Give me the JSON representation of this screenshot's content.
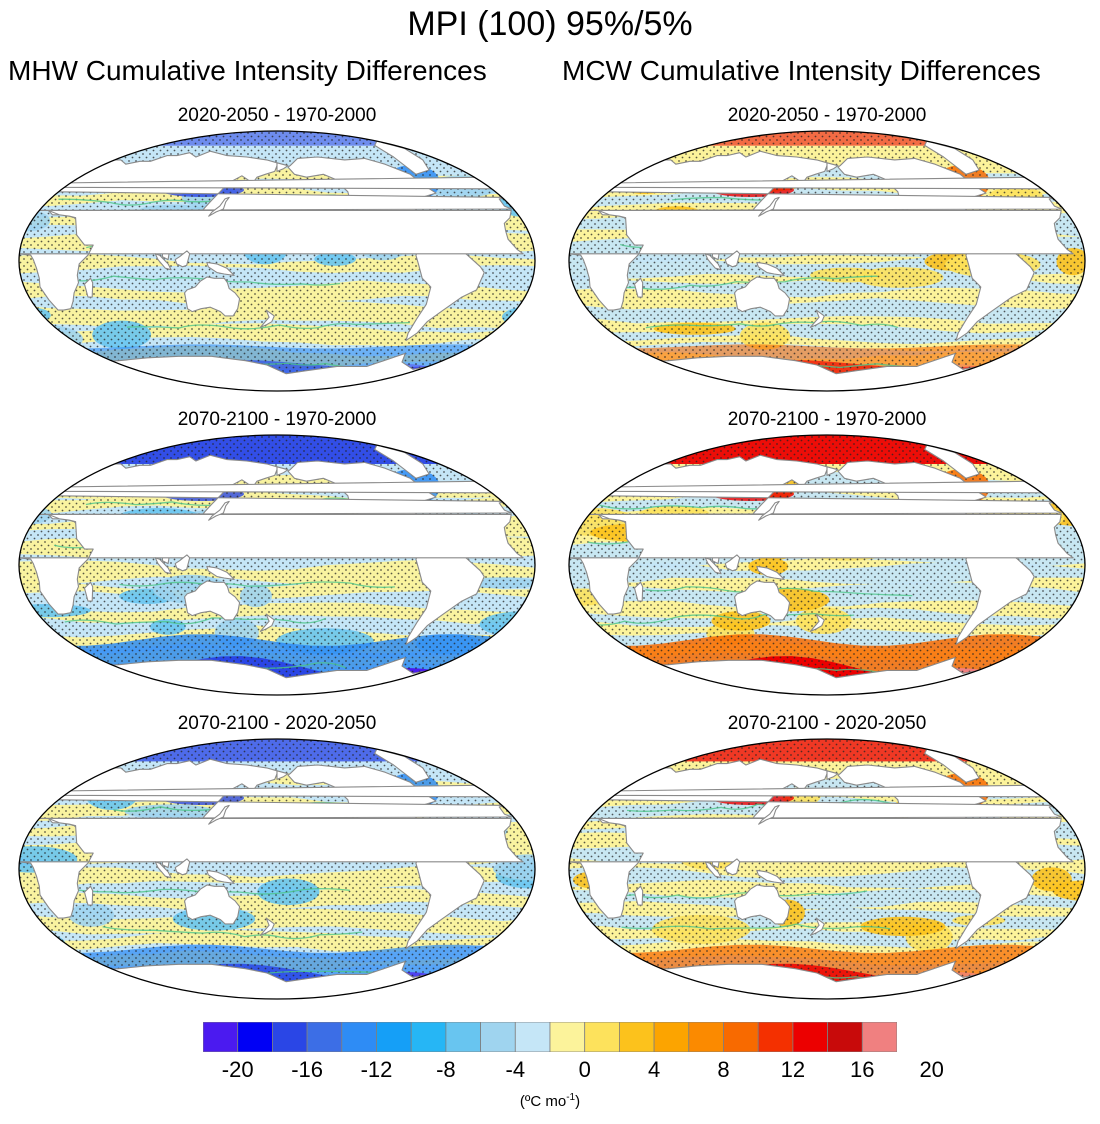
{
  "title": "MPI (100) 95%/5%",
  "columns": [
    "MHW Cumulative Intensity Differences",
    "MCW Cumulative Intensity Differences"
  ],
  "panels": [
    {
      "period": "2020-2050 - 1970-2000",
      "column": "MHW",
      "row": 1,
      "tone": "cool",
      "polar": "weak"
    },
    {
      "period": "2020-2050 - 1970-2000",
      "column": "MCW",
      "row": 1,
      "tone": "warm",
      "polar": "weak"
    },
    {
      "period": "2070-2100 - 1970-2000",
      "column": "MHW",
      "row": 2,
      "tone": "cool",
      "polar": "strong"
    },
    {
      "period": "2070-2100 - 1970-2000",
      "column": "MCW",
      "row": 2,
      "tone": "warm",
      "polar": "strong"
    },
    {
      "period": "2070-2100 - 2020-2050",
      "column": "MHW",
      "row": 3,
      "tone": "cool",
      "polar": "medium"
    },
    {
      "period": "2070-2100 - 2020-2050",
      "column": "MCW",
      "row": 3,
      "tone": "warm",
      "polar": "medium"
    }
  ],
  "colorbar": {
    "colors": [
      "#4b1af0",
      "#0000f5",
      "#2a46e6",
      "#3c6ee6",
      "#2e8cf5",
      "#159ff7",
      "#26b6f5",
      "#68c5f0",
      "#9fd4ef",
      "#c5e6f7",
      "#fcf39b",
      "#fde25c",
      "#fcc21c",
      "#fca400",
      "#fb8a00",
      "#f86a00",
      "#f43000",
      "#ec0000",
      "#c80a0a",
      "#f08080"
    ],
    "tick_labels": [
      "-20",
      "-16",
      "-12",
      "-8",
      "-4",
      "0",
      "4",
      "8",
      "12",
      "16",
      "20"
    ],
    "units_text": "(ºC mo",
    "units_sup": "-1",
    "units_close": ")"
  }
}
